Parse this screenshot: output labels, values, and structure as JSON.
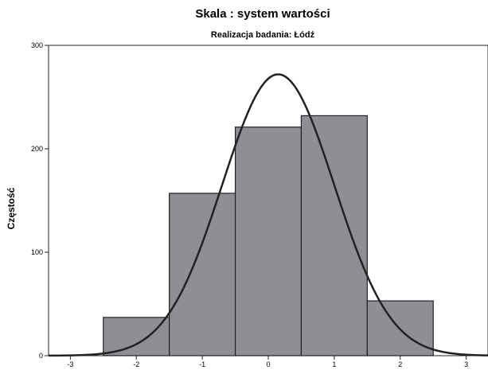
{
  "chart_data": {
    "type": "bar",
    "title": "Skala : system wartości",
    "subtitle": "Realizacja badania: Łódź",
    "xlabel": "",
    "ylabel": "Częstość",
    "xlim": [
      -3.33,
      3.33
    ],
    "ylim": [
      0,
      300
    ],
    "x_ticks": [
      "-3",
      "-2",
      "-1",
      "0",
      "1",
      "2",
      "3"
    ],
    "y_ticks": [
      "0",
      "100",
      "200",
      "300"
    ],
    "bins": [
      {
        "from": -2.5,
        "to": -1.5,
        "value": 37
      },
      {
        "from": -1.5,
        "to": -0.5,
        "value": 157
      },
      {
        "from": -0.5,
        "to": 0.5,
        "value": 221
      },
      {
        "from": 0.5,
        "to": 1.5,
        "value": 232
      },
      {
        "from": 1.5,
        "to": 2.5,
        "value": 53
      }
    ],
    "normal_curve": {
      "mean": 0.15,
      "peak": 272,
      "sd": 0.85
    },
    "grid": false,
    "colors": {
      "bar_fill": "#8d8f94",
      "bar_stroke": "#222222",
      "curve": "#222222"
    }
  }
}
